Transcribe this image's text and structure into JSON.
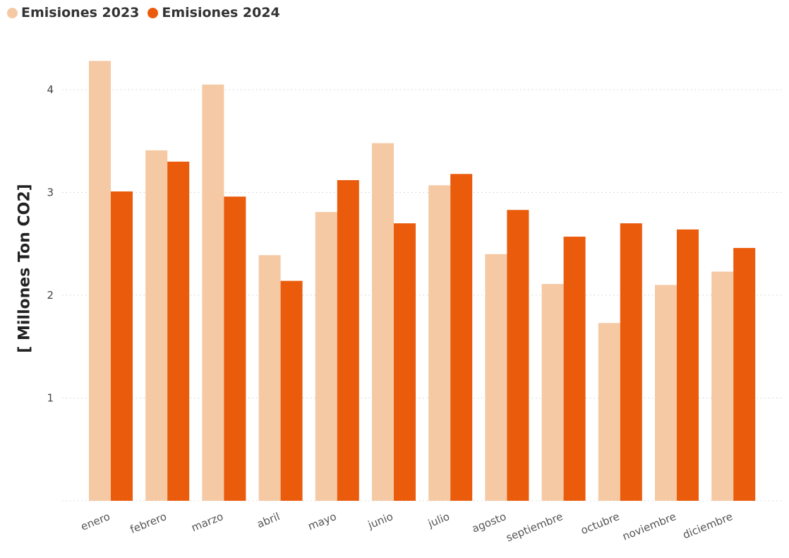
{
  "legend": {
    "items": [
      {
        "label": "Emisiones 2023",
        "color": "#f5c9a3"
      },
      {
        "label": "Emisiones 2024",
        "color": "#ea5b0c"
      }
    ]
  },
  "chart_data": {
    "type": "bar",
    "title": "",
    "xlabel": "",
    "ylabel": "[ Millones Ton CO2]",
    "ylim": [
      0,
      4.35
    ],
    "yticks": [
      1,
      2,
      3,
      4
    ],
    "grid": true,
    "legend_position": "top-left",
    "categories": [
      "enero",
      "febrero",
      "marzo",
      "abril",
      "mayo",
      "junio",
      "julio",
      "agosto",
      "septiembre",
      "octubre",
      "noviembre",
      "diciembre"
    ],
    "series": [
      {
        "name": "Emisiones 2023",
        "color": "#f5c9a3",
        "values": [
          4.28,
          3.41,
          4.05,
          2.39,
          2.81,
          3.48,
          3.07,
          2.4,
          2.11,
          1.73,
          2.1,
          2.23
        ]
      },
      {
        "name": "Emisiones 2024",
        "color": "#ea5b0c",
        "values": [
          3.01,
          3.3,
          2.96,
          2.14,
          3.12,
          2.7,
          3.18,
          2.83,
          2.57,
          2.7,
          2.64,
          2.46
        ]
      }
    ]
  }
}
